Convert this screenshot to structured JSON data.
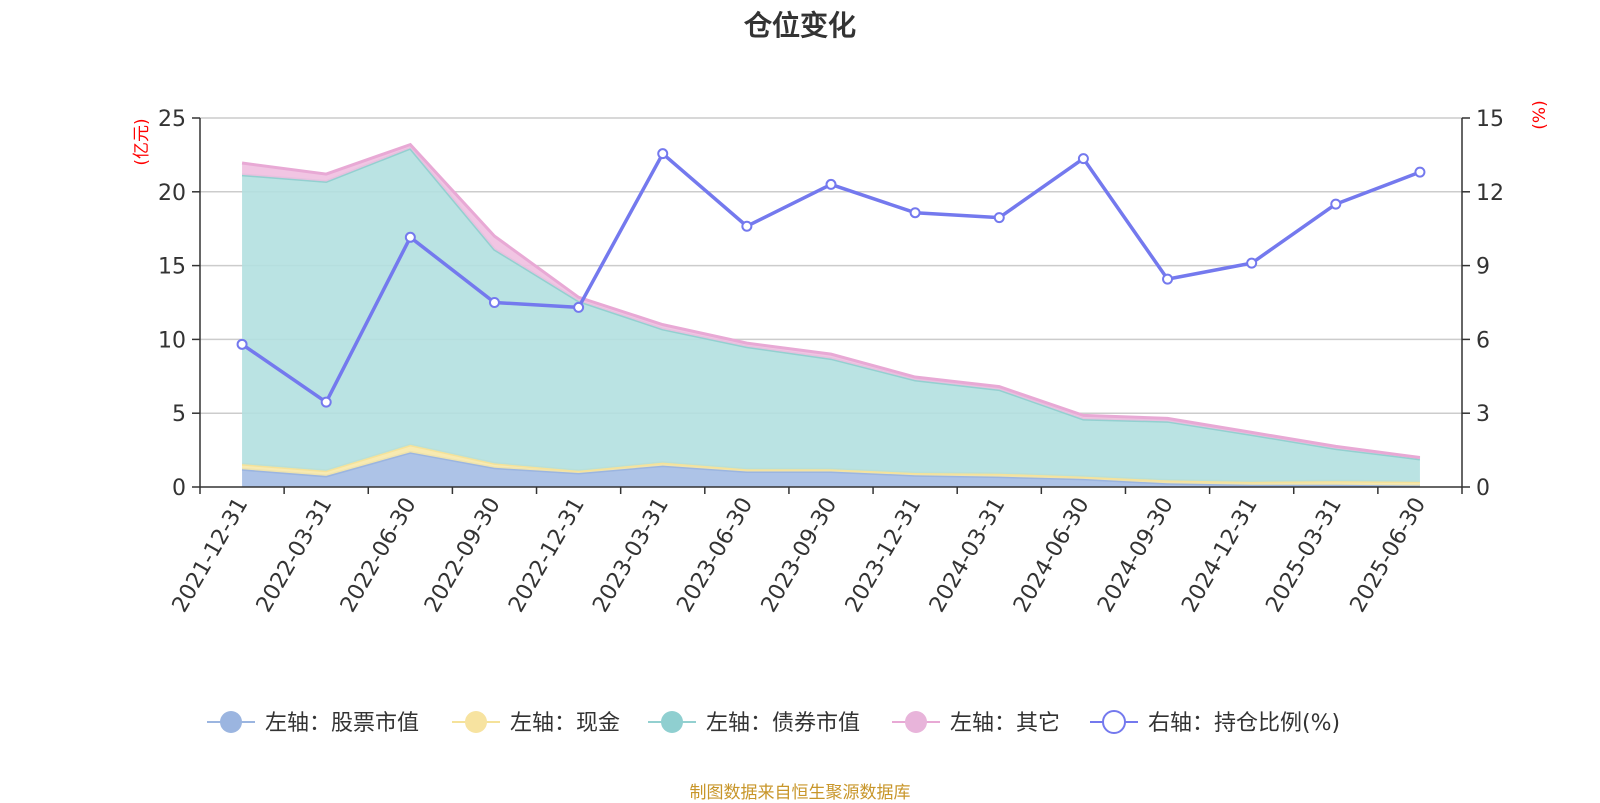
{
  "chart_data": {
    "type": "area",
    "title": "仓位变化",
    "source": "制图数据来自恒生聚源数据库",
    "left_axis_unit": "(亿元)",
    "right_axis_unit": "(%)",
    "categories": [
      "2021-12-31",
      "2022-03-31",
      "2022-06-30",
      "2022-09-30",
      "2022-12-31",
      "2023-03-31",
      "2023-06-30",
      "2023-09-30",
      "2023-12-31",
      "2024-03-31",
      "2024-06-30",
      "2024-09-30",
      "2024-12-31",
      "2025-03-31",
      "2025-06-30"
    ],
    "left_ylim": [
      0,
      25
    ],
    "left_ticks": [
      "0",
      "5",
      "10",
      "15",
      "20",
      "25"
    ],
    "right_ylim": [
      0,
      15
    ],
    "right_ticks": [
      "0",
      "3",
      "6",
      "9",
      "12",
      "15"
    ],
    "grid": true,
    "legend_position": "bottom",
    "series": [
      {
        "name": "左轴：股票市值",
        "axis": "left",
        "stack": true,
        "color": "#a4bde4",
        "line_color": "#9bb5e0",
        "values": [
          1.2,
          0.75,
          2.35,
          1.3,
          0.95,
          1.45,
          1.05,
          1.05,
          0.8,
          0.7,
          0.55,
          0.25,
          0.15,
          0.15,
          0.1
        ]
      },
      {
        "name": "左轴：现金",
        "axis": "left",
        "stack": true,
        "color": "#f7e8a8",
        "line_color": "#f5e29a",
        "values": [
          0.35,
          0.35,
          0.5,
          0.3,
          0.15,
          0.2,
          0.15,
          0.15,
          0.15,
          0.2,
          0.15,
          0.2,
          0.2,
          0.25,
          0.25
        ]
      },
      {
        "name": "左轴：债券市值",
        "axis": "left",
        "stack": true,
        "color": "#b3e0e0",
        "line_color": "#93d0d0",
        "values": [
          19.6,
          19.6,
          20.1,
          14.5,
          11.5,
          9.05,
          8.3,
          7.5,
          6.3,
          5.7,
          3.9,
          4.0,
          3.2,
          2.2,
          1.55
        ]
      },
      {
        "name": "左轴：其它",
        "axis": "left",
        "stack": true,
        "color": "#efbfe0",
        "line_color": "#e8a9d5",
        "values": [
          0.8,
          0.5,
          0.25,
          0.9,
          0.25,
          0.3,
          0.25,
          0.3,
          0.2,
          0.2,
          0.25,
          0.2,
          0.15,
          0.15,
          0.1
        ]
      },
      {
        "name": "右轴：持仓比例(%)",
        "axis": "right",
        "stack": false,
        "color": "#7479ee",
        "line_color": "#7479ee",
        "values": [
          5.8,
          3.45,
          10.15,
          7.5,
          7.3,
          13.55,
          10.6,
          12.3,
          11.15,
          10.95,
          13.35,
          8.45,
          9.1,
          11.5,
          12.8
        ]
      }
    ]
  }
}
